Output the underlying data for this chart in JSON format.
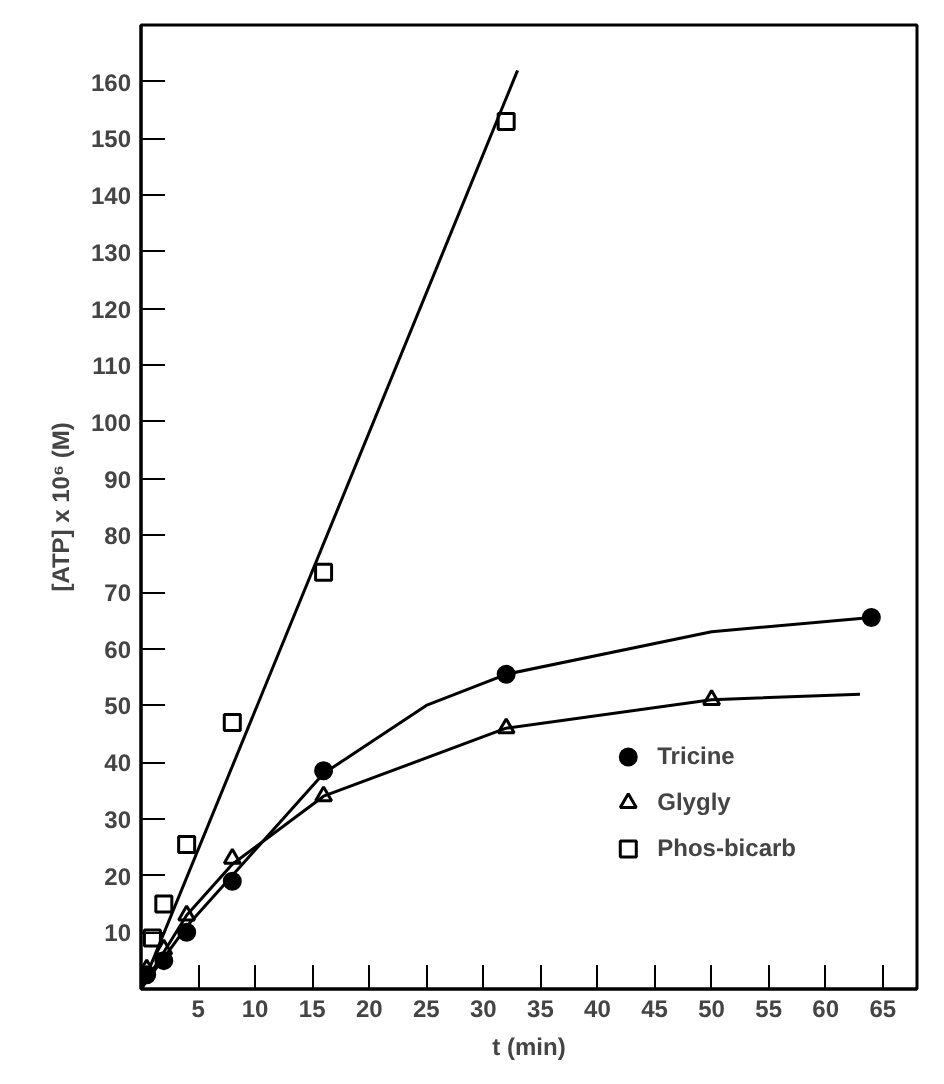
{
  "chart_data": {
    "type": "scatter",
    "xlabel": "t (min)",
    "ylabel": "[ATP] x 10⁶ (M)",
    "xlim": [
      0,
      68
    ],
    "ylim": [
      0,
      170
    ],
    "xticks": [
      5,
      10,
      15,
      20,
      25,
      30,
      35,
      40,
      45,
      50,
      55,
      60,
      65
    ],
    "yticks": [
      10,
      20,
      30,
      40,
      50,
      60,
      70,
      80,
      90,
      100,
      110,
      120,
      130,
      140,
      150,
      160
    ],
    "grid": false,
    "legend": "bottom right",
    "series": [
      {
        "name": "Tricine",
        "marker": "circle",
        "color": "#000000",
        "x": [
          0.5,
          2,
          4,
          8,
          16,
          32,
          64
        ],
        "values": [
          2.5,
          5,
          10,
          19,
          38.5,
          55.5,
          65.5
        ]
      },
      {
        "name": "Glygly",
        "marker": "triangle",
        "color": "#000000",
        "x": [
          0.5,
          2,
          4,
          8,
          16,
          32,
          50
        ],
        "values": [
          3.5,
          7,
          13,
          23,
          34,
          46,
          51
        ]
      },
      {
        "name": "Phos-bicarb",
        "marker": "square",
        "color": "#000000",
        "x": [
          1,
          2,
          4,
          8,
          16,
          32
        ],
        "values": [
          9,
          15,
          25.5,
          47,
          73.5,
          153
        ]
      },
      {
        "type": "line",
        "color": "#000000",
        "x": [
          0,
          4,
          8,
          16,
          25,
          32,
          50,
          64
        ],
        "values": [
          0,
          11,
          20,
          38,
          50,
          55.5,
          63,
          65.5
        ]
      },
      {
        "type": "line",
        "color": "#000000",
        "x": [
          0,
          4,
          8,
          16,
          32,
          50,
          63
        ],
        "values": [
          0,
          13,
          22,
          34,
          46,
          51,
          52
        ]
      },
      {
        "type": "line",
        "color": "#000000",
        "x": [
          0,
          33
        ],
        "values": [
          0,
          162
        ]
      }
    ]
  }
}
